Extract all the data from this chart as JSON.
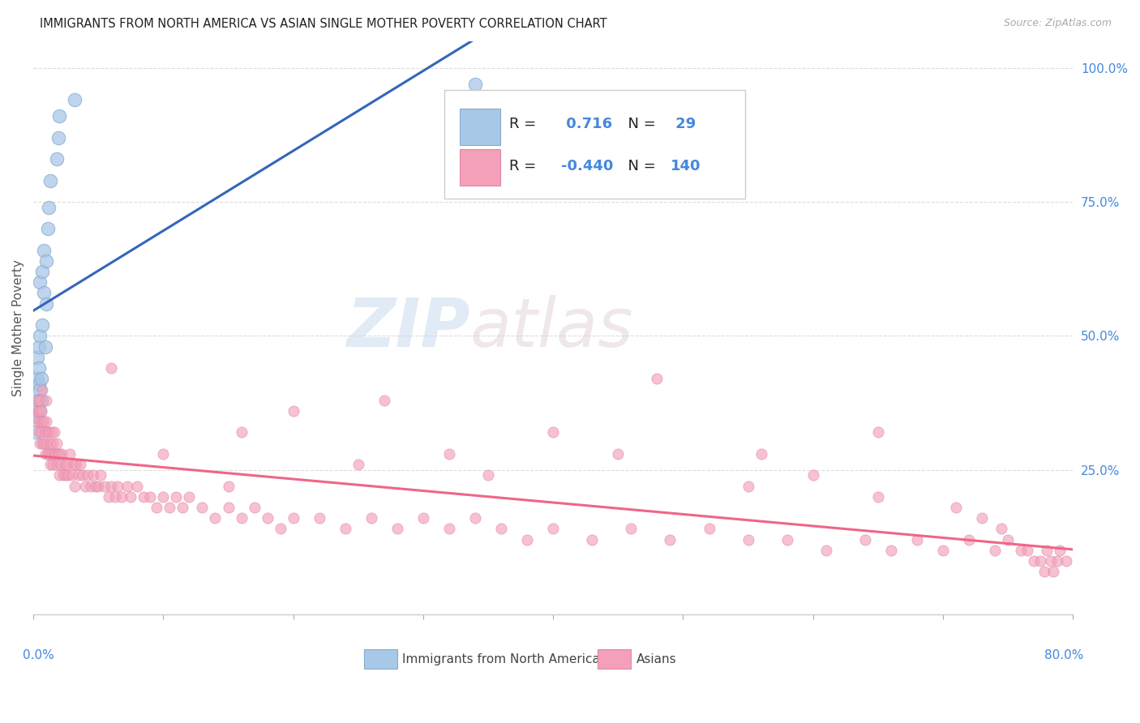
{
  "title": "IMMIGRANTS FROM NORTH AMERICA VS ASIAN SINGLE MOTHER POVERTY CORRELATION CHART",
  "source": "Source: ZipAtlas.com",
  "ylabel": "Single Mother Poverty",
  "legend_blue_r": "0.716",
  "legend_blue_n": "29",
  "legend_pink_r": "-0.440",
  "legend_pink_n": "140",
  "legend_label_blue": "Immigrants from North America",
  "legend_label_pink": "Asians",
  "watermark_zip": "ZIP",
  "watermark_atlas": "atlas",
  "blue_color": "#a8c8e8",
  "pink_color": "#f4a0b8",
  "blue_line_color": "#3366bb",
  "pink_line_color": "#ee6688",
  "text_blue": "#4488dd",
  "right_yticks": [
    0.0,
    0.25,
    0.5,
    0.75,
    1.0
  ],
  "right_ytick_labels": [
    "",
    "25.0%",
    "50.0%",
    "75.0%",
    "100.0%"
  ],
  "xlim": [
    0.0,
    0.8
  ],
  "ylim": [
    -0.02,
    1.05
  ],
  "blue_scatter_x": [
    0.002,
    0.002,
    0.003,
    0.003,
    0.003,
    0.004,
    0.004,
    0.004,
    0.005,
    0.005,
    0.005,
    0.005,
    0.006,
    0.006,
    0.007,
    0.007,
    0.008,
    0.008,
    0.009,
    0.01,
    0.01,
    0.011,
    0.012,
    0.013,
    0.018,
    0.019,
    0.02,
    0.032,
    0.34
  ],
  "blue_scatter_y": [
    0.32,
    0.35,
    0.38,
    0.42,
    0.46,
    0.41,
    0.44,
    0.48,
    0.36,
    0.4,
    0.5,
    0.6,
    0.38,
    0.42,
    0.52,
    0.62,
    0.58,
    0.66,
    0.48,
    0.56,
    0.64,
    0.7,
    0.74,
    0.79,
    0.83,
    0.87,
    0.91,
    0.94,
    0.97
  ],
  "pink_scatter_x": [
    0.002,
    0.003,
    0.003,
    0.004,
    0.004,
    0.005,
    0.005,
    0.005,
    0.006,
    0.006,
    0.007,
    0.007,
    0.007,
    0.008,
    0.008,
    0.009,
    0.009,
    0.01,
    0.01,
    0.01,
    0.011,
    0.011,
    0.012,
    0.012,
    0.013,
    0.013,
    0.014,
    0.014,
    0.015,
    0.015,
    0.016,
    0.016,
    0.017,
    0.018,
    0.018,
    0.019,
    0.02,
    0.02,
    0.021,
    0.022,
    0.023,
    0.024,
    0.025,
    0.026,
    0.027,
    0.028,
    0.03,
    0.031,
    0.032,
    0.033,
    0.035,
    0.036,
    0.038,
    0.04,
    0.042,
    0.044,
    0.046,
    0.048,
    0.05,
    0.052,
    0.055,
    0.058,
    0.06,
    0.063,
    0.065,
    0.068,
    0.072,
    0.075,
    0.08,
    0.085,
    0.09,
    0.095,
    0.1,
    0.105,
    0.11,
    0.115,
    0.12,
    0.13,
    0.14,
    0.15,
    0.16,
    0.17,
    0.18,
    0.19,
    0.2,
    0.22,
    0.24,
    0.26,
    0.28,
    0.3,
    0.32,
    0.34,
    0.36,
    0.38,
    0.4,
    0.43,
    0.46,
    0.49,
    0.52,
    0.55,
    0.58,
    0.61,
    0.64,
    0.66,
    0.68,
    0.7,
    0.72,
    0.74,
    0.75,
    0.76,
    0.765,
    0.77,
    0.775,
    0.778,
    0.78,
    0.783,
    0.785,
    0.788,
    0.79,
    0.795,
    0.06,
    0.2,
    0.27,
    0.48,
    0.16,
    0.4,
    0.32,
    0.56,
    0.6,
    0.65,
    0.1,
    0.15,
    0.25,
    0.35,
    0.45,
    0.55,
    0.65,
    0.71,
    0.73,
    0.745
  ],
  "pink_scatter_y": [
    0.34,
    0.36,
    0.38,
    0.32,
    0.36,
    0.3,
    0.34,
    0.38,
    0.32,
    0.36,
    0.3,
    0.34,
    0.4,
    0.3,
    0.34,
    0.28,
    0.32,
    0.3,
    0.34,
    0.38,
    0.28,
    0.32,
    0.28,
    0.32,
    0.26,
    0.3,
    0.28,
    0.32,
    0.26,
    0.3,
    0.28,
    0.32,
    0.28,
    0.26,
    0.3,
    0.28,
    0.24,
    0.28,
    0.26,
    0.28,
    0.24,
    0.26,
    0.24,
    0.26,
    0.24,
    0.28,
    0.24,
    0.26,
    0.22,
    0.26,
    0.24,
    0.26,
    0.24,
    0.22,
    0.24,
    0.22,
    0.24,
    0.22,
    0.22,
    0.24,
    0.22,
    0.2,
    0.22,
    0.2,
    0.22,
    0.2,
    0.22,
    0.2,
    0.22,
    0.2,
    0.2,
    0.18,
    0.2,
    0.18,
    0.2,
    0.18,
    0.2,
    0.18,
    0.16,
    0.18,
    0.16,
    0.18,
    0.16,
    0.14,
    0.16,
    0.16,
    0.14,
    0.16,
    0.14,
    0.16,
    0.14,
    0.16,
    0.14,
    0.12,
    0.14,
    0.12,
    0.14,
    0.12,
    0.14,
    0.12,
    0.12,
    0.1,
    0.12,
    0.1,
    0.12,
    0.1,
    0.12,
    0.1,
    0.12,
    0.1,
    0.1,
    0.08,
    0.08,
    0.06,
    0.1,
    0.08,
    0.06,
    0.08,
    0.1,
    0.08,
    0.44,
    0.36,
    0.38,
    0.42,
    0.32,
    0.32,
    0.28,
    0.28,
    0.24,
    0.32,
    0.28,
    0.22,
    0.26,
    0.24,
    0.28,
    0.22,
    0.2,
    0.18,
    0.16,
    0.14
  ],
  "background_color": "#ffffff",
  "grid_color": "#dddddd"
}
